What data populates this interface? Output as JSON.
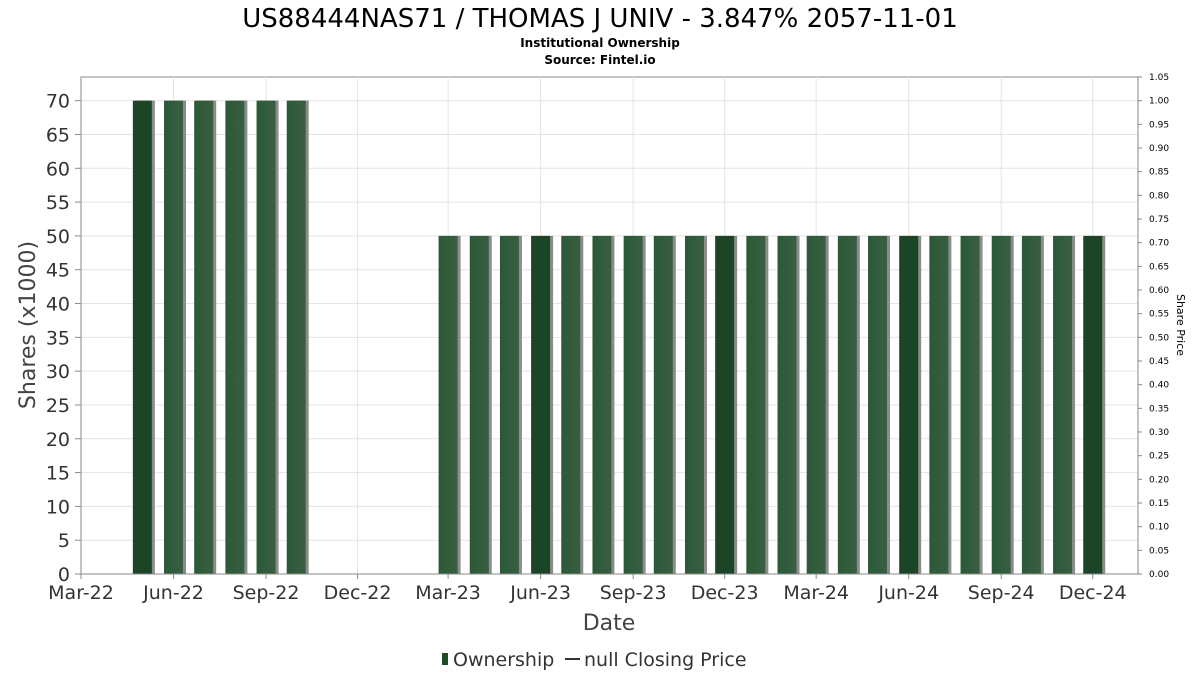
{
  "chart_data": {
    "type": "bar",
    "title": "US88444NAS71 / THOMAS J UNIV - 3.847% 2057-11-01",
    "subtitle": "Institutional Ownership",
    "source": "Source: Fintel.io",
    "xlabel": "Date",
    "ylabel": "Shares (x1000)",
    "y2label": "Share Price",
    "ylim": [
      0,
      73.5
    ],
    "y2lim": [
      0,
      1.05
    ],
    "yticks": [
      0,
      5,
      10,
      15,
      20,
      25,
      30,
      35,
      40,
      45,
      50,
      55,
      60,
      65,
      70
    ],
    "y2ticks": [
      "0.00",
      "0.05",
      "0.10",
      "0.15",
      "0.20",
      "0.25",
      "0.30",
      "0.35",
      "0.40",
      "0.45",
      "0.50",
      "0.55",
      "0.60",
      "0.65",
      "0.70",
      "0.75",
      "0.80",
      "0.85",
      "0.90",
      "0.95",
      "1.00",
      "1.05"
    ],
    "xlim": [
      "2022-03-01",
      "2025-01-15"
    ],
    "xticks": [
      {
        "label": "Mar-22",
        "date": "2022-03-01"
      },
      {
        "label": "Jun-22",
        "date": "2022-06-01"
      },
      {
        "label": "Sep-22",
        "date": "2022-09-01"
      },
      {
        "label": "Dec-22",
        "date": "2022-12-01"
      },
      {
        "label": "Mar-23",
        "date": "2023-03-01"
      },
      {
        "label": "Jun-23",
        "date": "2023-06-01"
      },
      {
        "label": "Sep-23",
        "date": "2023-09-01"
      },
      {
        "label": "Dec-23",
        "date": "2023-12-01"
      },
      {
        "label": "Mar-24",
        "date": "2024-03-01"
      },
      {
        "label": "Jun-24",
        "date": "2024-06-01"
      },
      {
        "label": "Sep-24",
        "date": "2024-09-01"
      },
      {
        "label": "Dec-24",
        "date": "2024-12-01"
      }
    ],
    "series": [
      {
        "name": "Ownership",
        "color": "#1e4a2a",
        "x": [
          "2022-05-01",
          "2022-06-01",
          "2022-07-01",
          "2022-08-01",
          "2022-09-01",
          "2022-10-01",
          "2023-03-01",
          "2023-04-01",
          "2023-05-01",
          "2023-06-01",
          "2023-07-01",
          "2023-08-01",
          "2023-09-01",
          "2023-10-01",
          "2023-11-01",
          "2023-12-01",
          "2024-01-01",
          "2024-02-01",
          "2024-03-01",
          "2024-04-01",
          "2024-05-01",
          "2024-06-01",
          "2024-07-01",
          "2024-08-01",
          "2024-09-01",
          "2024-10-01",
          "2024-11-01",
          "2024-12-01"
        ],
        "values": [
          70,
          70,
          70,
          70,
          70,
          70,
          50,
          50,
          50,
          50,
          50,
          50,
          50,
          50,
          50,
          50,
          50,
          50,
          50,
          50,
          50,
          50,
          50,
          50,
          50,
          50,
          50,
          50
        ]
      },
      {
        "name": "null Closing Price",
        "color": "#333333",
        "values": []
      }
    ],
    "grid": true,
    "legend": "bottom-center"
  }
}
